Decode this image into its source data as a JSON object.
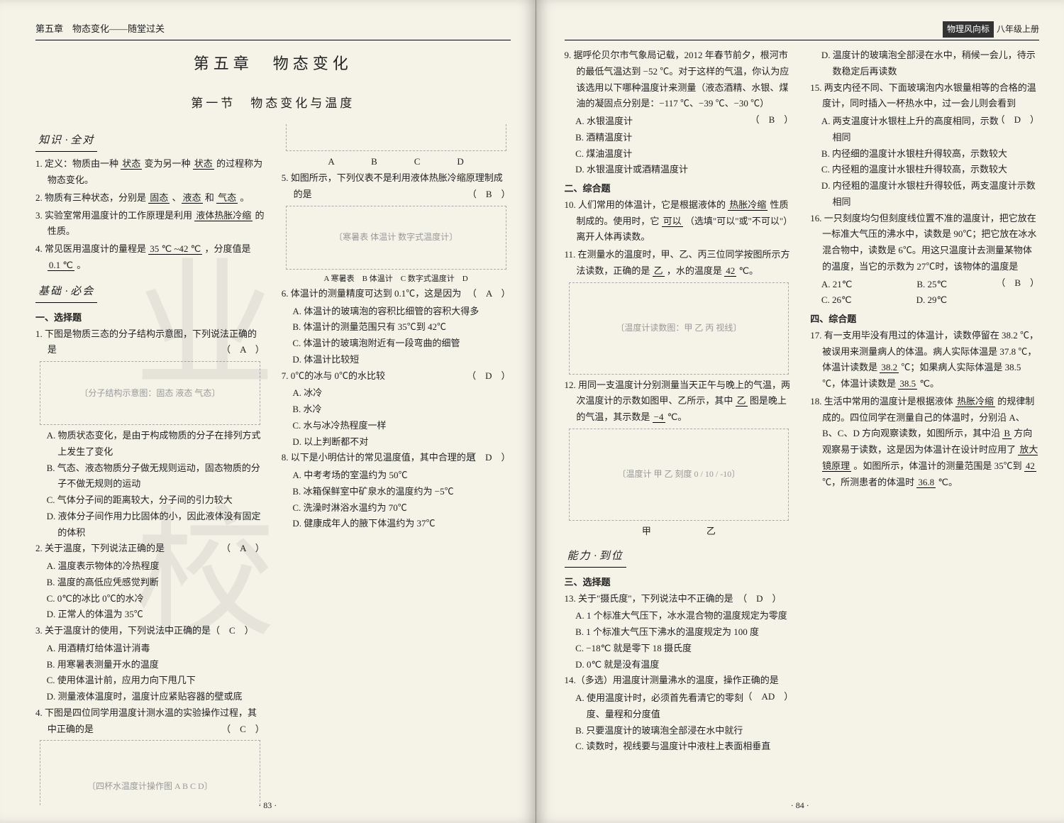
{
  "book": {
    "left_header": "第五章　物态变化——随堂过关",
    "right_header_badge": "物理风向标",
    "right_header_grade": "八年级上册",
    "chapter_title": "第五章　物态变化",
    "section_title": "第一节　物态变化与温度",
    "page_left_num": "· 83 ·",
    "page_right_num": "· 84 ·",
    "watermark": "业校"
  },
  "heads": {
    "h1a": "知识",
    "h1b": "全对",
    "h2a": "基础",
    "h2b": "必会",
    "h3a": "能力",
    "h3b": "到位"
  },
  "left": {
    "k1_pre": "1. 定义：物质由一种 ",
    "k1_b1": "状态",
    "k1_mid": " 变为另一种 ",
    "k1_b2": "状态",
    "k1_post": " 的过程称为物态变化。",
    "k2_pre": "2. 物质有三种状态，分别是 ",
    "k2_b1": "固态",
    "k2_s1": " 、",
    "k2_b2": "液态",
    "k2_s2": " 和 ",
    "k2_b3": "气态",
    "k2_end": " 。",
    "k3_pre": "3. 实验室常用温度计的工作原理是利用 ",
    "k3_b": "液体热胀冷缩",
    "k3_post": " 的性质。",
    "k4_pre": "4. 常见医用温度计的量程是 ",
    "k4_b1": "35 ℃ ~42 ℃",
    "k4_mid": " ，分度值是 ",
    "k4_b2": "0.1 ℃",
    "k4_end": " 。",
    "sub1": "一、选择题",
    "q1": "1. 下图是物质三态的分子结构示意图，下列说法正确的是",
    "q1_ans": "（　A　）",
    "q1_a": "A. 物质状态变化，是由于构成物质的分子在排列方式上发生了变化",
    "q1_b": "B. 气态、液态物质分子做无规则运动，固态物质的分子不做无规则的运动",
    "q1_c": "C. 气体分子间的距离较大，分子间的引力较大",
    "q1_d": "D. 液体分子间作用力比固体的小，因此液体没有固定的体积",
    "q2": "2. 关于温度，下列说法正确的是",
    "q2_ans": "（　A　）",
    "q2_a": "A. 温度表示物体的冷热程度",
    "q2_b": "B. 温度的高低应凭感觉判断",
    "q2_c": "C. 0℃的冰比 0℃的水冷",
    "q2_d": "D. 正常人的体温为 35℃",
    "q3": "3. 关于温度计的使用，下列说法中正确的是（　C　）",
    "q3_a": "A. 用酒精灯给体温计消毒",
    "q3_b": "B. 用寒暑表测量开水的温度",
    "q3_c": "C. 使用体温计前，应用力向下甩几下",
    "q3_d": "D. 测量液体温度时，温度计应紧贴容器的壁或底",
    "q4": "4. 下图是四位同学用温度计测水温的实验操作过程，其中正确的是",
    "q4_ans": "（　C　）",
    "q4_labels": "A　　　　B　　　　C　　　　D",
    "q5": "5. 如图所示，下列仪表不是利用液体热胀冷缩原理制成的是",
    "q5_ans": "（　B　）",
    "q5_labels": "A 寒暑表　B 体温计　C 数字式温度计　D",
    "q6": "6. 体温计的测量精度可达到 0.1℃，这是因为",
    "q6_ans": "（　A　）",
    "q6_a": "A. 体温计的玻璃泡的容积比细管的容积大得多",
    "q6_b": "B. 体温计的测量范围只有 35℃到 42℃",
    "q6_c": "C. 体温计的玻璃泡附近有一段弯曲的细管",
    "q6_d": "D. 体温计比较短",
    "q7": "7. 0℃的冰与 0℃的水比较",
    "q7_ans": "（　D　）",
    "q7_a": "A. 冰冷",
    "q7_b": "B. 水冷",
    "q7_c": "C. 水与冰冷热程度一样",
    "q7_d": "D. 以上判断都不对",
    "q8": "8. 以下是小明估计的常见温度值，其中合理的是",
    "q8_ans": "（　D　）",
    "q8_a": "A. 中考考场的室温约为 50℃",
    "q8_b": "B. 冰箱保鲜室中矿泉水的温度约为 −5℃",
    "q8_c": "C. 洗澡时淋浴水温约为 70℃",
    "q8_d": "D. 健康成年人的腋下体温约为 37℃"
  },
  "right": {
    "q9": "9. 据呼伦贝尔市气象局记载，2012 年春节前夕，根河市的最低气温达到 −52 ℃。对于这样的气温，你认为应该选用以下哪种温度计来测量（液态酒精、水银、煤油的凝固点分别是：−117 ℃、−39 ℃、−30 ℃）",
    "q9_ans": "（　B　）",
    "q9_a": "A. 水银温度计",
    "q9_b": "B. 酒精温度计",
    "q9_c": "C. 煤油温度计",
    "q9_d": "D. 水银温度计或酒精温度计",
    "sub2": "二、综合题",
    "q10_pre": "10. 人们常用的体温计，它是根据液体的 ",
    "q10_b1": "热胀冷缩",
    "q10_mid": " 性质制成的。使用时，它 ",
    "q10_b2": "可以",
    "q10_post": " （选填\"可以\"或\"不可以\"）离开人体再读数。",
    "q11_pre": "11. 在测量水的温度时，甲、乙、丙三位同学按图所示方法读数，正确的是 ",
    "q11_b1": "乙",
    "q11_mid": " ，水的温度是 ",
    "q11_b2": "42",
    "q11_post": " ℃。",
    "q12_pre": "12. 用同一支温度计分别测量当天正午与晚上的气温，两次温度计的示数如图甲、乙所示，其中 ",
    "q12_b1": "乙",
    "q12_mid": " 图是晚上的气温，其示数是 ",
    "q12_b2": "−4",
    "q12_post": " ℃。",
    "q12_labels": "甲　　　　　　乙",
    "sub3": "三、选择题",
    "q13": "13. 关于\"摄氏度\"，下列说法中不正确的是　（　D　）",
    "q13_a": "A. 1 个标准大气压下，冰水混合物的温度规定为零度",
    "q13_b": "B. 1 个标准大气压下沸水的温度规定为 100 度",
    "q13_c": "C. −18℃ 就是零下 18 摄氏度",
    "q13_d": "D. 0℃ 就是没有温度",
    "q14": "14.（多选）用温度计测量沸水的温度，操作正确的是",
    "q14_ans": "（　AD　）",
    "q14_a": "A. 使用温度计时，必须首先看清它的零刻度、量程和分度值",
    "q14_b": "B. 只要温度计的玻璃泡全部浸在水中就行",
    "q14_c": "C. 读数时，视线要与温度计中液柱上表面相垂直",
    "q14_d": "D. 温度计的玻璃泡全部浸在水中，稍候一会儿，待示数稳定后再读数",
    "q15": "15. 两支内径不同、下面玻璃泡内水银量相等的合格的温度计，同时插入一杯热水中，过一会儿则会看到",
    "q15_ans": "（　D　）",
    "q15_a": "A. 两支温度计水银柱上升的高度相同，示数相同",
    "q15_b": "B. 内径细的温度计水银柱升得较高，示数较大",
    "q15_c": "C. 内径粗的温度计水银柱升得较高，示数较大",
    "q15_d": "D. 内径粗的温度计水银柱升得较低，两支温度计示数相同",
    "q16": "16. 一只刻度均匀但刻度线位置不准的温度计，把它放在一标准大气压的沸水中，读数是 90℃；把它放在冰水混合物中，读数是 6℃。用这只温度计去测量某物体的温度，当它的示数为 27℃时，该物体的温度是",
    "q16_ans": "（　B　）",
    "q16_a": "A. 21℃　　　　　　　B. 25℃",
    "q16_c": "C. 26℃　　　　　　　D. 29℃",
    "sub4": "四、综合题",
    "q17_pre": "17. 有一支用毕没有甩过的体温计，读数停留在 38.2 ℃，被误用来测量病人的体温。病人实际体温是 37.8 ℃，体温计读数是 ",
    "q17_b1": "38.2",
    "q17_mid": " ℃；如果病人实际体温是 38.5 ℃，体温计读数是 ",
    "q17_b2": "38.5",
    "q17_post": " ℃。",
    "q18_p1": "18. 生活中常用的温度计是根据液体 ",
    "q18_b1": "热胀冷缩",
    "q18_p2": " 的规律制成的。四位同学在测量自己的体温时，分别沿 A、B、C、D 方向观察读数，如图所示，其中沿 ",
    "q18_b2": "B",
    "q18_p3": " 方向观察易于读数，这是因为体温计在设计时应用了 ",
    "q18_b3": "放大镜原理",
    "q18_p4": " 。如图所示，体温计的测量范围是 35℃到 ",
    "q18_b4": "42",
    "q18_p5": " ℃，所测患者的体温时 ",
    "q18_b5": "36.8",
    "q18_p6": " ℃。"
  }
}
